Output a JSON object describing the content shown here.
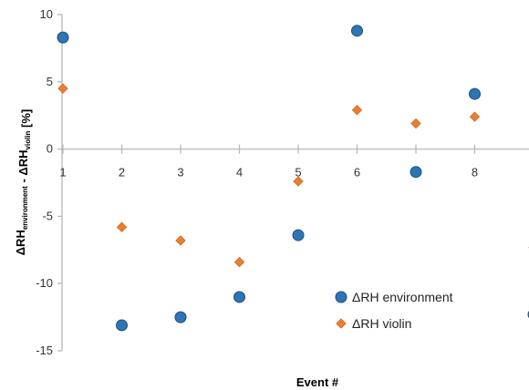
{
  "chart_data": {
    "type": "scatter",
    "title": "",
    "xlabel": "Event #",
    "ylabel_parts": {
      "a": "ΔRH",
      "a_sub": "environment",
      "sep": " - ",
      "b": "ΔRH",
      "b_sub": "violin",
      "unit": " [%]"
    },
    "x_ticks": [
      "1",
      "2",
      "3",
      "4",
      "5",
      "6",
      "7",
      "8"
    ],
    "y_ticks": [
      "10",
      "5",
      "0",
      "-5",
      "-10",
      "-15"
    ],
    "ylim": [
      -15,
      10
    ],
    "xlim": [
      1,
      9
    ],
    "grid": false,
    "legend_position": "bottom-right",
    "series": [
      {
        "name": "ΔRH environment",
        "marker": "circle",
        "color": "#2E75B6",
        "points": [
          [
            1,
            8.3
          ],
          [
            2,
            -13.1
          ],
          [
            3,
            -12.5
          ],
          [
            4,
            -11.0
          ],
          [
            5,
            -6.4
          ],
          [
            6,
            8.8
          ],
          [
            7,
            -1.7
          ],
          [
            8,
            4.1
          ],
          [
            9,
            -12.3
          ]
        ]
      },
      {
        "name": "ΔRH violin",
        "marker": "diamond",
        "color": "#ED7D31",
        "points": [
          [
            1,
            4.5
          ],
          [
            2,
            -5.8
          ],
          [
            3,
            -6.8
          ],
          [
            4,
            -8.4
          ],
          [
            5,
            -2.4
          ],
          [
            6,
            2.9
          ],
          [
            7,
            1.9
          ],
          [
            8,
            2.4
          ],
          [
            9,
            -7.3
          ]
        ]
      }
    ]
  }
}
